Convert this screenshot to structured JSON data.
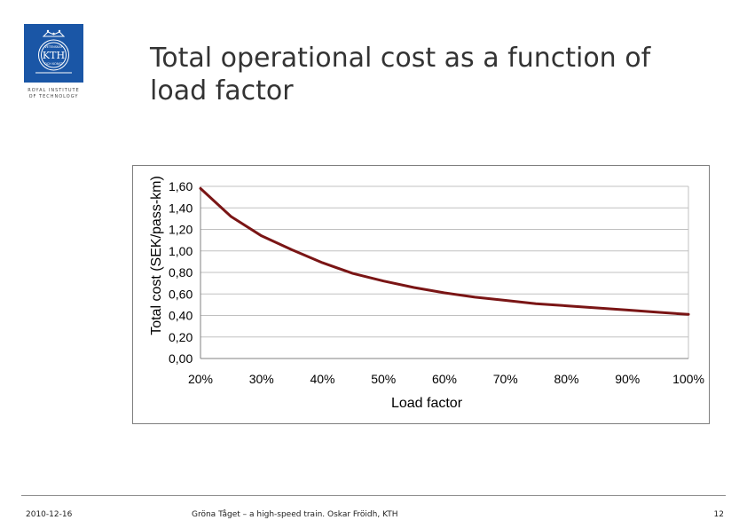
{
  "logo": {
    "text": "KTH",
    "upper_text": "VETENSKAP",
    "lower_text": "OCH KONST",
    "caption_line1": "ROYAL INSTITUTE",
    "caption_line2": "OF TECHNOLOGY",
    "colors": {
      "background": "#1a56a6",
      "foreground": "#ffffff"
    }
  },
  "slide": {
    "title": "Total operational cost as a function of load factor"
  },
  "chart_data": {
    "type": "line",
    "title": "",
    "xlabel": "Load factor",
    "ylabel": "Total cost (SEK/pass-km)",
    "xlim": [
      0.2,
      1.0
    ],
    "ylim": [
      0.0,
      1.6
    ],
    "grid": true,
    "legend": "none",
    "x_ticks": [
      0.2,
      0.3,
      0.4,
      0.5,
      0.6,
      0.7,
      0.8,
      0.9,
      1.0
    ],
    "x_tick_labels": [
      "20%",
      "30%",
      "40%",
      "50%",
      "60%",
      "70%",
      "80%",
      "90%",
      "100%"
    ],
    "y_ticks": [
      0.0,
      0.2,
      0.4,
      0.6,
      0.8,
      1.0,
      1.2,
      1.4,
      1.6
    ],
    "y_tick_labels": [
      "0,00",
      "0,20",
      "0,40",
      "0,60",
      "0,80",
      "1,00",
      "1,20",
      "1,40",
      "1,60"
    ],
    "series": [
      {
        "name": "Total cost",
        "color": "#7a1515",
        "x": [
          0.2,
          0.25,
          0.3,
          0.35,
          0.4,
          0.45,
          0.5,
          0.55,
          0.6,
          0.65,
          0.7,
          0.75,
          0.8,
          0.85,
          0.9,
          0.95,
          1.0
        ],
        "y": [
          1.58,
          1.32,
          1.14,
          1.01,
          0.89,
          0.79,
          0.72,
          0.66,
          0.61,
          0.57,
          0.54,
          0.51,
          0.49,
          0.47,
          0.45,
          0.43,
          0.41
        ]
      }
    ],
    "colors": {
      "grid": "#c0c0c0",
      "axis": "#808080",
      "tick_text": "#000000"
    }
  },
  "footer": {
    "date": "2010-12-16",
    "center": "Gröna Tåget – a high-speed train. Oskar Fröidh, KTH",
    "page": "12"
  }
}
